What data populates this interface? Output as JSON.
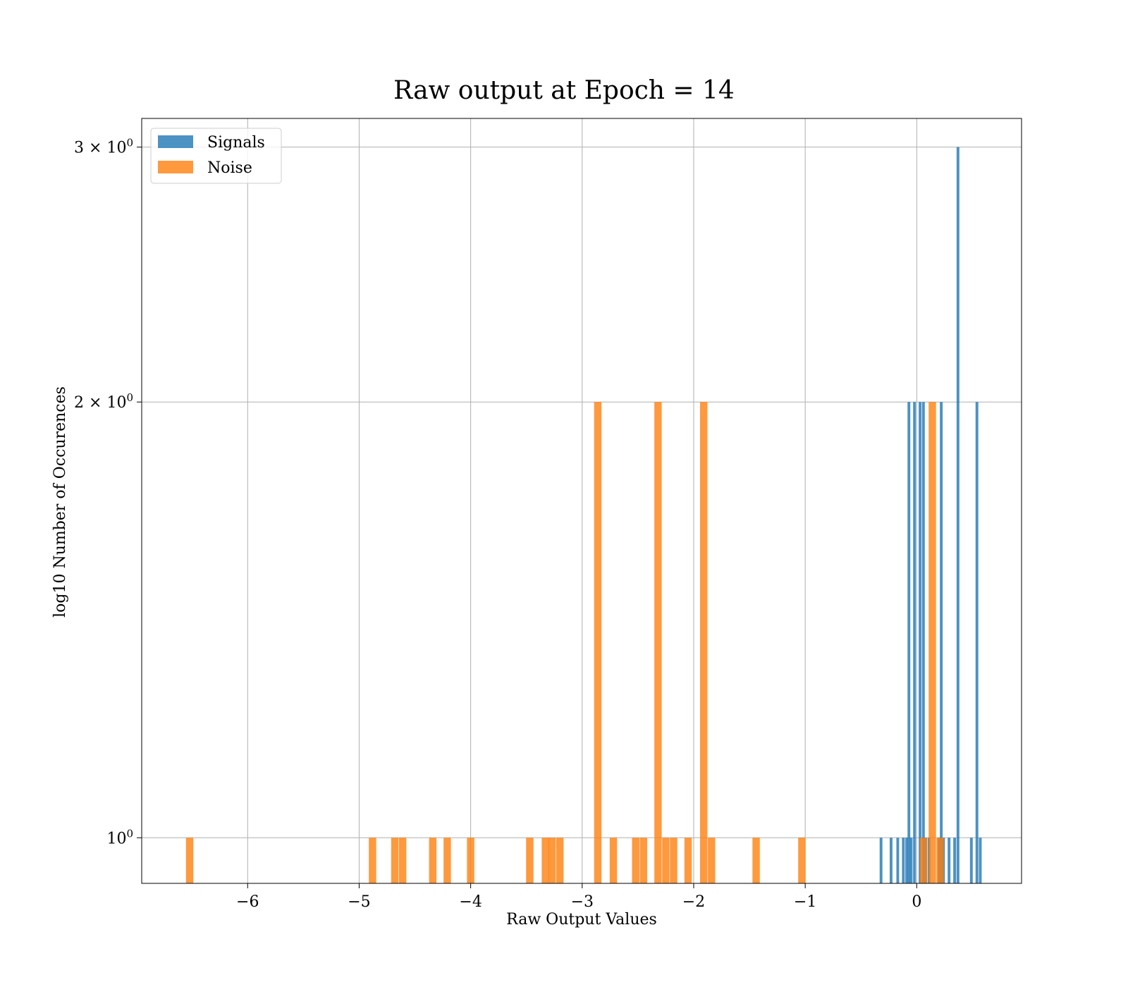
{
  "chart_data": {
    "type": "bar",
    "title": "Raw output at Epoch = 14",
    "xlabel": "Raw Output Values",
    "ylabel": "log10 Number of Occurences",
    "xlim": [
      -6.95,
      0.94
    ],
    "ylim": [
      0.93,
      3.14
    ],
    "yscale": "log",
    "grid": true,
    "legend_position": "upper-left",
    "x_ticks": [
      -6,
      -5,
      -4,
      -3,
      -2,
      -1,
      0
    ],
    "x_tick_labels": [
      "−6",
      "−5",
      "−4",
      "−3",
      "−2",
      "−1",
      "0"
    ],
    "y_ticks": [
      1,
      2,
      3
    ],
    "y_tick_labels": [
      {
        "base": "10",
        "sup": "0"
      },
      {
        "base": "2 × 10",
        "sup": "0"
      },
      {
        "base": "3 × 10",
        "sup": "0"
      }
    ],
    "series": [
      {
        "name": "Signals",
        "color": "#1f77b4",
        "opacity": 0.8,
        "bin_width": 0.025,
        "bars": [
          {
            "x": -0.32,
            "count": 1
          },
          {
            "x": -0.23,
            "count": 1
          },
          {
            "x": -0.17,
            "count": 1
          },
          {
            "x": -0.12,
            "count": 1
          },
          {
            "x": -0.09,
            "count": 1
          },
          {
            "x": -0.07,
            "count": 2
          },
          {
            "x": -0.05,
            "count": 1
          },
          {
            "x": -0.02,
            "count": 2
          },
          {
            "x": 0.03,
            "count": 2
          },
          {
            "x": 0.06,
            "count": 2
          },
          {
            "x": 0.08,
            "count": 1
          },
          {
            "x": 0.11,
            "count": 1
          },
          {
            "x": 0.2,
            "count": 1
          },
          {
            "x": 0.22,
            "count": 2
          },
          {
            "x": 0.24,
            "count": 1
          },
          {
            "x": 0.29,
            "count": 1
          },
          {
            "x": 0.34,
            "count": 1
          },
          {
            "x": 0.37,
            "count": 3
          },
          {
            "x": 0.49,
            "count": 1
          },
          {
            "x": 0.54,
            "count": 2
          },
          {
            "x": 0.57,
            "count": 1
          }
        ]
      },
      {
        "name": "Noise",
        "color": "#ff7f0e",
        "opacity": 0.8,
        "bin_width": 0.066,
        "bars": [
          {
            "x": -6.52,
            "count": 1
          },
          {
            "x": -4.88,
            "count": 1
          },
          {
            "x": -4.68,
            "count": 1
          },
          {
            "x": -4.61,
            "count": 1
          },
          {
            "x": -4.34,
            "count": 1
          },
          {
            "x": -4.21,
            "count": 1
          },
          {
            "x": -4.0,
            "count": 1
          },
          {
            "x": -3.47,
            "count": 1
          },
          {
            "x": -3.33,
            "count": 1
          },
          {
            "x": -3.27,
            "count": 1
          },
          {
            "x": -3.2,
            "count": 1
          },
          {
            "x": -2.86,
            "count": 2
          },
          {
            "x": -2.72,
            "count": 1
          },
          {
            "x": -2.52,
            "count": 1
          },
          {
            "x": -2.45,
            "count": 1
          },
          {
            "x": -2.32,
            "count": 2
          },
          {
            "x": -2.25,
            "count": 1
          },
          {
            "x": -2.18,
            "count": 1
          },
          {
            "x": -2.05,
            "count": 1
          },
          {
            "x": -1.91,
            "count": 2
          },
          {
            "x": -1.84,
            "count": 1
          },
          {
            "x": -1.44,
            "count": 1
          },
          {
            "x": -1.03,
            "count": 1
          },
          {
            "x": 0.06,
            "count": 1
          },
          {
            "x": 0.14,
            "count": 2
          },
          {
            "x": 0.21,
            "count": 1
          }
        ]
      }
    ]
  }
}
